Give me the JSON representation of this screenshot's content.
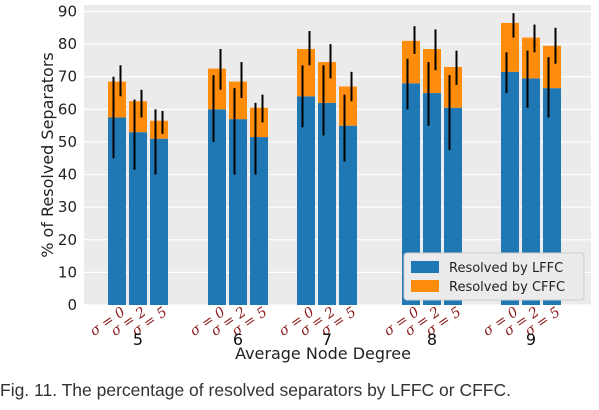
{
  "chart_data": {
    "type": "bar",
    "stacked": true,
    "groups": [
      "5",
      "6",
      "7",
      "8",
      "9"
    ],
    "sub_labels": [
      "σ = 0",
      "σ = 2",
      "σ = 5"
    ],
    "xlabel": "Average Node Degree",
    "ylabel": "% of Resolved Separators",
    "ylim": [
      0,
      92
    ],
    "yticks": [
      0,
      10,
      20,
      30,
      40,
      50,
      60,
      70,
      80,
      90
    ],
    "grid": true,
    "legend_position": "bottom-right",
    "series": [
      {
        "name": "Resolved by LFFC",
        "color": "#1f77b4",
        "values": [
          [
            57.5,
            53,
            51
          ],
          [
            60,
            57,
            51.5
          ],
          [
            64,
            62,
            55
          ],
          [
            68,
            65,
            60.5
          ],
          [
            71.5,
            69.5,
            66.5
          ]
        ]
      },
      {
        "name": "Resolved by CFFC",
        "color": "#ff8c0a",
        "values": [
          [
            11,
            9.5,
            5.5
          ],
          [
            12.5,
            11.5,
            9
          ],
          [
            14.5,
            12.5,
            12
          ],
          [
            13,
            13.5,
            12.5
          ],
          [
            15,
            12.5,
            13
          ]
        ]
      }
    ],
    "error_bars": {
      "color": "#000000",
      "lffc": [
        [
          [
            45,
            70
          ],
          [
            41.5,
            63
          ],
          [
            40,
            60
          ]
        ],
        [
          [
            50,
            70.5
          ],
          [
            40,
            66.5
          ],
          [
            40,
            62
          ]
        ],
        [
          [
            54.5,
            73.5
          ],
          [
            52,
            73.5
          ],
          [
            44,
            64.5
          ]
        ],
        [
          [
            60,
            75.5
          ],
          [
            55,
            74.5
          ],
          [
            47.5,
            70.5
          ]
        ],
        [
          [
            65,
            77.5
          ],
          [
            60.5,
            78
          ],
          [
            57.5,
            76
          ]
        ]
      ],
      "cffc": [
        [
          [
            64,
            73.5
          ],
          [
            57.5,
            66
          ],
          [
            52.5,
            59.5
          ]
        ],
        [
          [
            66,
            78.5
          ],
          [
            63.5,
            74.5
          ],
          [
            56,
            64.5
          ]
        ],
        [
          [
            73.5,
            84
          ],
          [
            69.5,
            80
          ],
          [
            62.5,
            71.5
          ]
        ],
        [
          [
            77,
            85.5
          ],
          [
            72,
            84.5
          ],
          [
            67.5,
            78
          ]
        ],
        [
          [
            82,
            89.5
          ],
          [
            77.5,
            86
          ],
          [
            74,
            85
          ]
        ]
      ]
    }
  },
  "caption": "Fig. 11. The percentage of resolved separators by LFFC or CFFC."
}
